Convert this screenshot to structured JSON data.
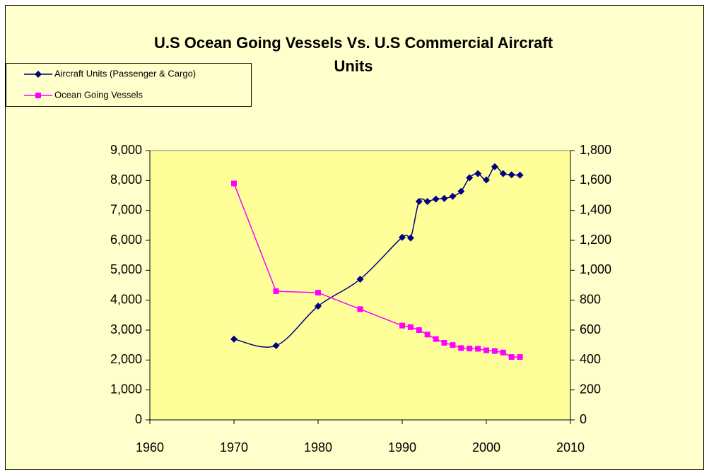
{
  "chart_data": {
    "type": "line",
    "title": [
      "U.S Ocean Going Vessels Vs. U.S Commercial Aircraft",
      "Units"
    ],
    "x": [
      1970,
      1975,
      1980,
      1985,
      1990,
      1991,
      1992,
      1993,
      1994,
      1995,
      1996,
      1997,
      1998,
      1999,
      2000,
      2001,
      2002,
      2003,
      2004
    ],
    "series": [
      {
        "name": "Aircraft Units (Passenger & Cargo)",
        "color": "#000080",
        "marker": "diamond",
        "smooth": true,
        "values": [
          2700,
          2480,
          3800,
          4700,
          6100,
          6080,
          7300,
          7300,
          7380,
          7400,
          7470,
          7640,
          8090,
          8230,
          8020,
          8460,
          8230,
          8190,
          8180
        ]
      },
      {
        "name": "Ocean Going Vessels",
        "color": "#FF00FF",
        "marker": "square",
        "axis": "y2",
        "smooth": false,
        "values": [
          1580,
          860,
          850,
          740,
          630,
          620,
          600,
          570,
          540,
          515,
          500,
          480,
          477,
          475,
          465,
          460,
          450,
          420,
          420
        ]
      }
    ],
    "xlim": [
      1960,
      2010
    ],
    "xticks": [
      1960,
      1970,
      1980,
      1990,
      2000,
      2010
    ],
    "ylim": [
      0,
      9000
    ],
    "yticks": [
      0,
      {
        "value": 1000,
        "label": "1,000"
      },
      {
        "value": 2000,
        "label": "2,000"
      },
      {
        "value": 3000,
        "label": "3,000"
      },
      {
        "value": 4000,
        "label": "4,000"
      },
      {
        "value": 5000,
        "label": "5,000"
      },
      {
        "value": 6000,
        "label": "6,000"
      },
      {
        "value": 7000,
        "label": "7,000"
      },
      {
        "value": 8000,
        "label": "8,000"
      },
      {
        "value": 9000,
        "label": "9,000"
      }
    ],
    "y2lim": [
      0,
      1800
    ],
    "y2ticks": [
      0,
      200,
      400,
      600,
      800,
      {
        "value": 1000,
        "label": "1,000"
      },
      {
        "value": 1200,
        "label": "1,200"
      },
      {
        "value": 1400,
        "label": "1,400"
      },
      {
        "value": 1600,
        "label": "1,600"
      },
      {
        "value": 1800,
        "label": "1,800"
      }
    ],
    "legend": "top-left",
    "grid": false
  }
}
